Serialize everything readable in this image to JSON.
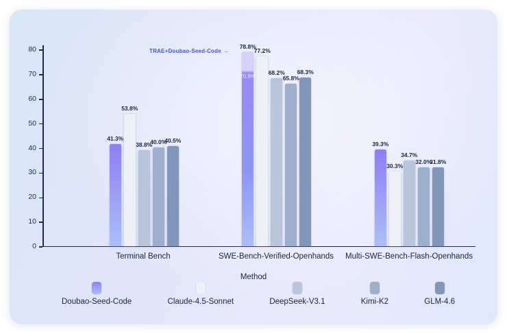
{
  "chart_data": {
    "type": "bar",
    "title": "",
    "xlabel": "Method",
    "ylabel": "",
    "ylim": [
      0,
      80
    ],
    "yticks": [
      0,
      10,
      20,
      30,
      40,
      50,
      60,
      70,
      80
    ],
    "grid": false,
    "legend_position": "bottom",
    "categories": [
      "Terminal Bench",
      "SWE-Bench-Verified-Openhands",
      "Multi-SWE-Bench-Flash-Openhands"
    ],
    "series": [
      {
        "name": "Doubao-Seed-Code",
        "values": [
          41.3,
          78.8,
          39.3
        ],
        "labels": [
          "41.3%",
          "78.8%",
          "39.3%"
        ],
        "color": {
          "type": "gradient",
          "from": "#8f7ef4",
          "to": "#a9bff8"
        }
      },
      {
        "name": "Claude-4.5-Sonnet",
        "values": [
          53.8,
          77.2,
          30.3
        ],
        "labels": [
          "53.8%",
          "77.2%",
          "30.3%"
        ],
        "color": {
          "type": "solid",
          "value": "#edf1f7"
        }
      },
      {
        "name": "DeepSeek-V3.1",
        "values": [
          38.8,
          68.2,
          34.7
        ],
        "labels": [
          "38.8%",
          "68.2%",
          "34.7%"
        ],
        "color": {
          "type": "solid",
          "value": "#b9c5da"
        }
      },
      {
        "name": "Kimi-K2",
        "values": [
          40.0,
          65.8,
          32.0
        ],
        "labels": [
          "40.0%",
          "65.8%",
          "32.0%"
        ],
        "color": {
          "type": "solid",
          "value": "#9cb0cc"
        }
      },
      {
        "name": "GLM-4.6",
        "values": [
          40.5,
          68.3,
          31.8
        ],
        "labels": [
          "40.5%",
          "68.3%",
          "31.8%"
        ],
        "color": {
          "type": "solid",
          "value": "#8197ba"
        }
      }
    ],
    "highlight": {
      "series_index": 0,
      "category_index": 1,
      "inner_label": "70.9%",
      "cap_color": "rgba(213,205,252,0.92)"
    },
    "annotation": {
      "label": "TRAE+Doubao-Seed-Code",
      "arrow": "→"
    }
  }
}
